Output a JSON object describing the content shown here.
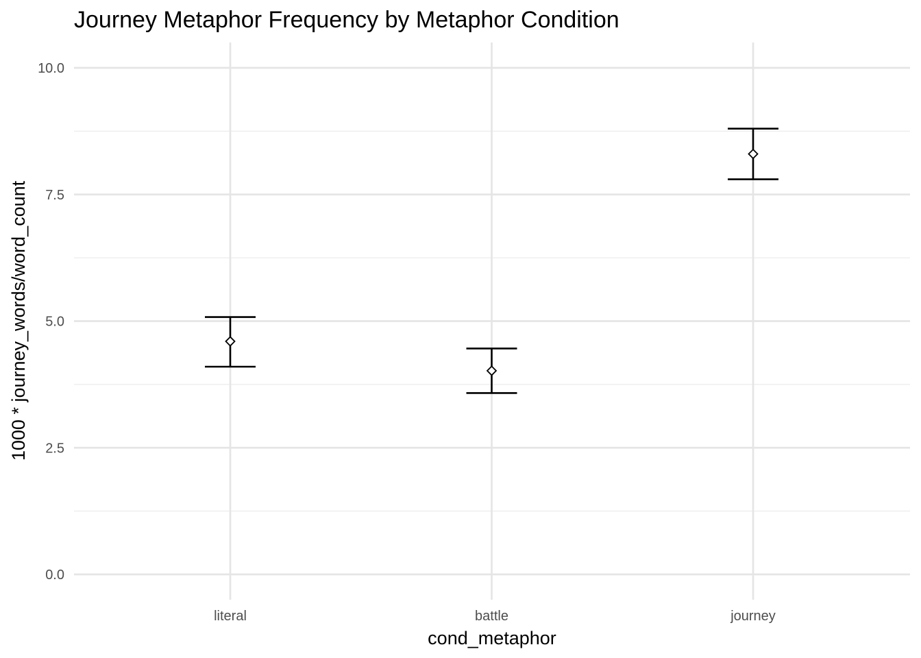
{
  "chart_data": {
    "type": "scatter",
    "title": "Journey Metaphor Frequency by Metaphor Condition",
    "xlabel": "cond_metaphor",
    "ylabel": "1000 * journey_words/word_count",
    "categories": [
      "literal",
      "battle",
      "journey"
    ],
    "series": [
      {
        "values": [
          4.6,
          4.02,
          8.3
        ],
        "lower": [
          4.1,
          3.58,
          7.8
        ],
        "upper": [
          5.08,
          4.46,
          8.8
        ]
      }
    ],
    "ylim": [
      -0.45,
      10.5
    ],
    "yticks": [
      0,
      2.5,
      5,
      7.5,
      10
    ],
    "ytick_labels": [
      "0.0",
      "2.5",
      "5.0",
      "7.5",
      "10.0"
    ],
    "marker": "open diamond",
    "error_bars": true,
    "grid": true,
    "legend": "none"
  }
}
